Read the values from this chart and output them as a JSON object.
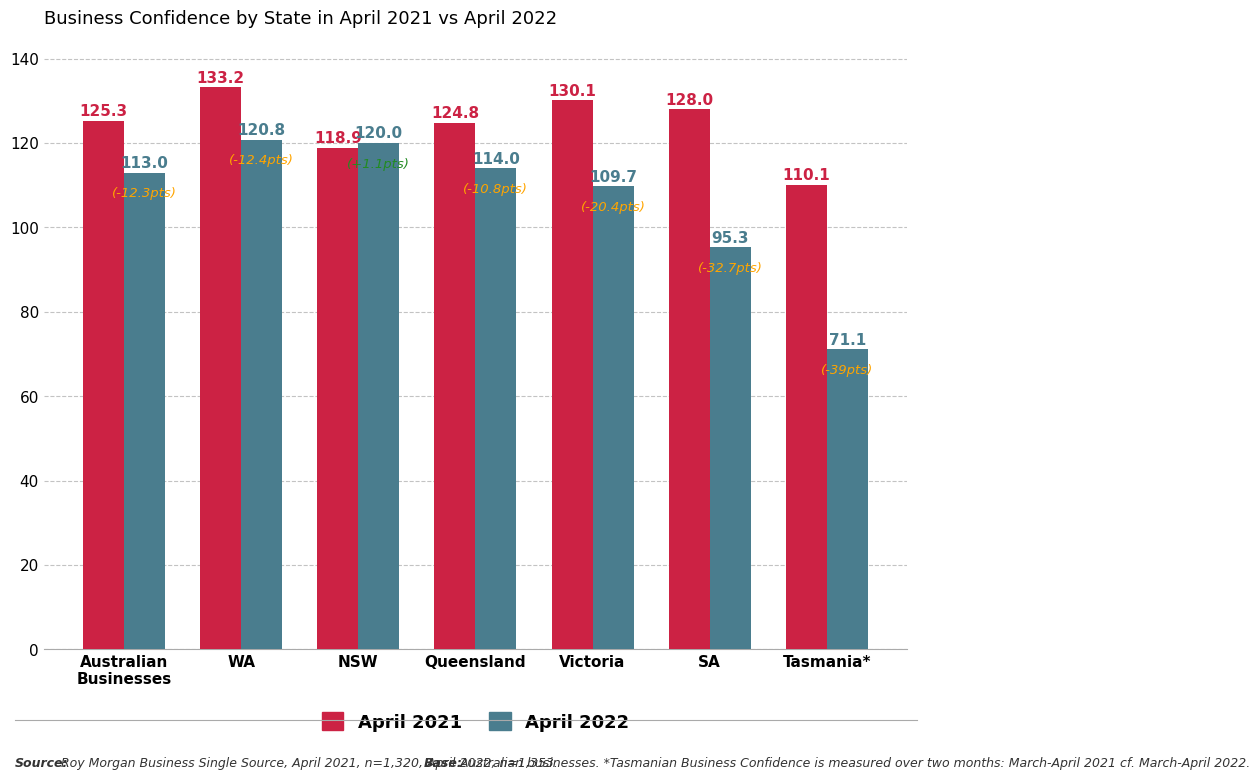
{
  "title": "Business Confidence by State in April 2021 vs April 2022",
  "categories": [
    "Australian\nBusinesses",
    "WA",
    "NSW",
    "Queensland",
    "Victoria",
    "SA",
    "Tasmania*"
  ],
  "april2021": [
    125.3,
    133.2,
    118.9,
    124.8,
    130.1,
    128.0,
    110.1
  ],
  "april2022": [
    113.0,
    120.8,
    120.0,
    114.0,
    109.7,
    95.3,
    71.1
  ],
  "changes": [
    "-12.3pts",
    "-12.4pts",
    "+1.1pts",
    "-10.8pts",
    "-20.4pts",
    "-32.7pts",
    "-39pts"
  ],
  "change_colors": [
    "#FFA500",
    "#FFA500",
    "#228B22",
    "#FFA500",
    "#FFA500",
    "#FFA500",
    "#FFA500"
  ],
  "bar_color_2021": "#CC2244",
  "bar_color_2022": "#4A7D8E",
  "ylim": [
    0,
    145
  ],
  "yticks": [
    0,
    20,
    40,
    60,
    80,
    100,
    120,
    140
  ],
  "legend_label_2021": "April 2021",
  "legend_label_2022": "April 2022",
  "footnote_source_bold": "Source:",
  "footnote_source_rest": " Roy Morgan Business Single Source, April 2021, n=1,320, April 2022, n=1,353. ",
  "footnote_base_bold": "Base:",
  "footnote_base_rest": " Australian businesses. *Tasmanian Business Confidence is measured over two months: March-April 2021 cf. March-April 2022.",
  "bar_width": 0.35,
  "title_fontsize": 13,
  "label_fontsize": 11,
  "tick_fontsize": 11,
  "change_fontsize": 9.5,
  "legend_fontsize": 13,
  "footnote_fontsize": 9
}
